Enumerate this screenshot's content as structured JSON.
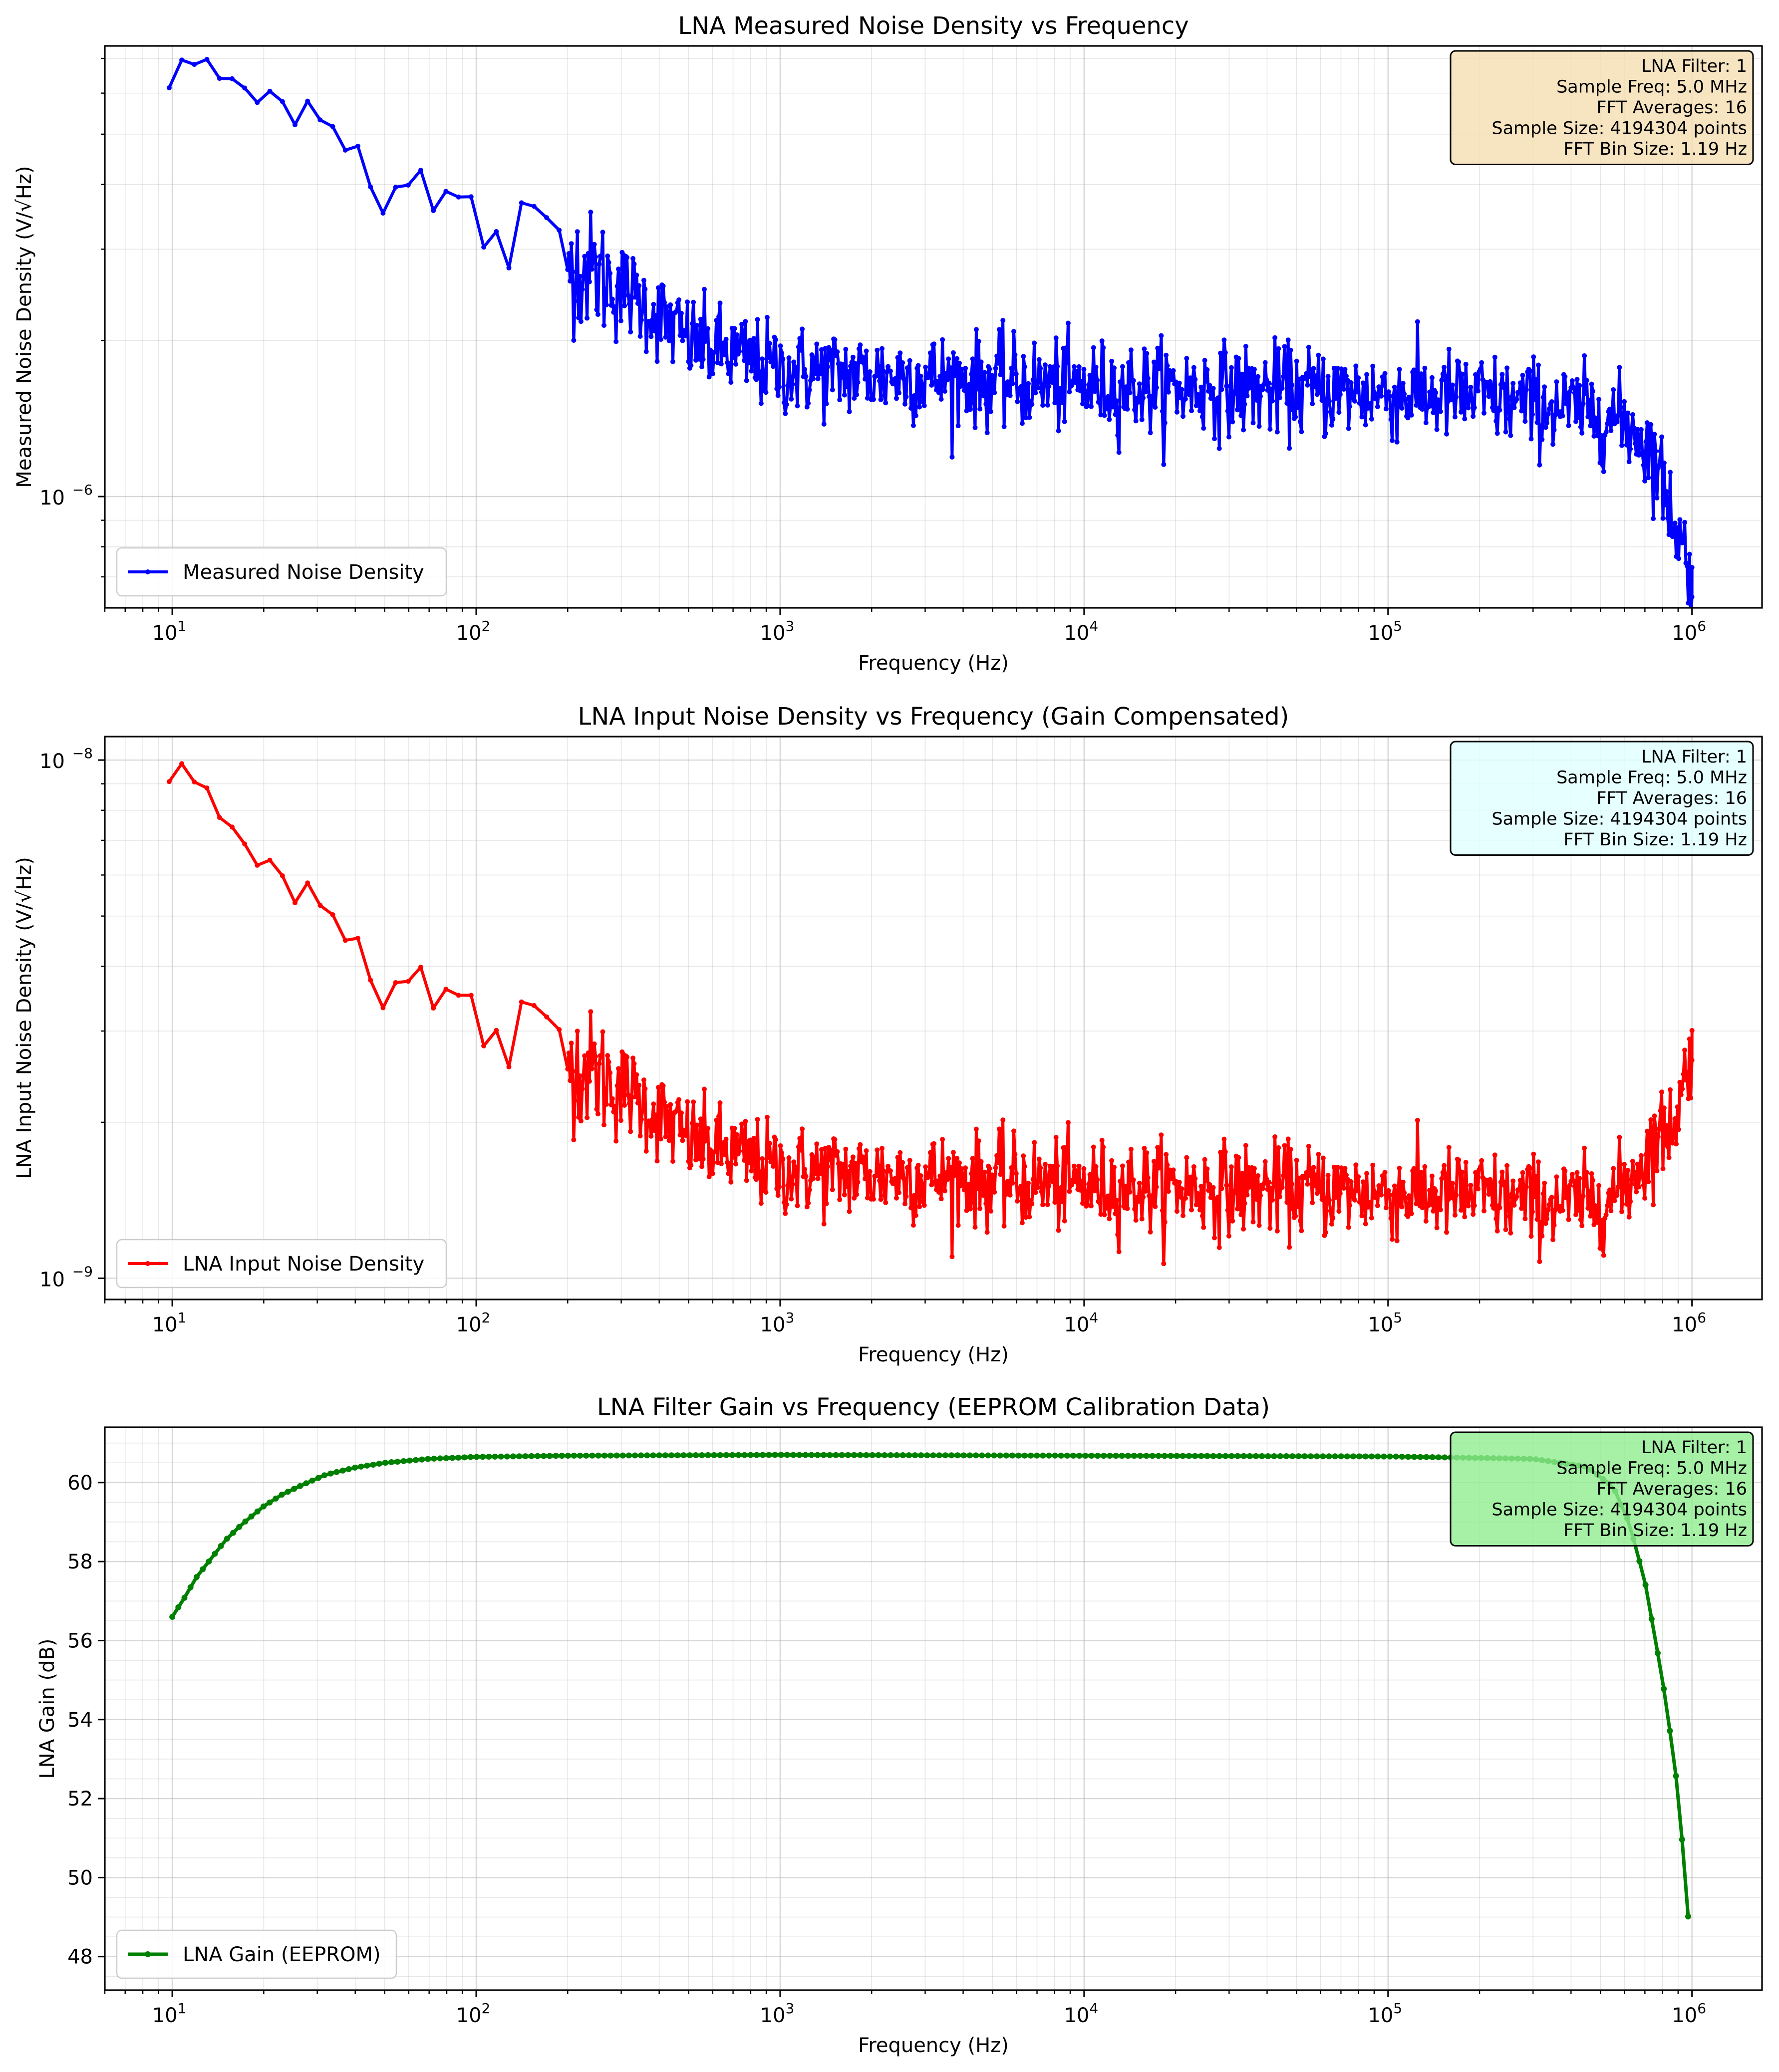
{
  "info_box": {
    "lines": [
      "LNA Filter: 1",
      "Sample Freq: 5.0 MHz",
      "FFT Averages: 16",
      "Sample Size: 4194304 points",
      "FFT Bin Size: 1.19 Hz"
    ]
  },
  "chart_data": [
    {
      "id": "measured",
      "type": "line",
      "title": "LNA Measured Noise Density vs Frequency",
      "xlabel": "Frequency (Hz)",
      "ylabel": "Measured Noise Density (V/√Hz)",
      "x_scale": "log",
      "y_scale": "log",
      "xlim": [
        6,
        1700000
      ],
      "ylim": [
        6.1e-07,
        7.4e-06
      ],
      "x_ticks": [
        {
          "v": 10,
          "base": "10",
          "exp": "1"
        },
        {
          "v": 100,
          "base": "10",
          "exp": "2"
        },
        {
          "v": 1000,
          "base": "10",
          "exp": "3"
        },
        {
          "v": 10000,
          "base": "10",
          "exp": "4"
        },
        {
          "v": 100000,
          "base": "10",
          "exp": "5"
        },
        {
          "v": 1000000,
          "base": "10",
          "exp": "6"
        }
      ],
      "y_ticks": [
        {
          "v": 1e-06,
          "base": "10",
          "exp": "−6"
        }
      ],
      "legend": "Measured Noise Density",
      "legend_position": "lower-left",
      "info_box_position": "upper-right",
      "color": "#0000ff",
      "box_color": "#f5deb3",
      "grid": true,
      "model": "measured",
      "series": [
        {
          "name": "Measured Noise Density",
          "anchors": [
            [
              9.8,
              6.2e-06
            ],
            [
              11,
              6.9e-06
            ],
            [
              12.5,
              6.9e-06
            ],
            [
              14,
              6.3e-06
            ],
            [
              16,
              6.5e-06
            ],
            [
              18,
              5.9e-06
            ],
            [
              20,
              5.6e-06
            ],
            [
              21,
              6e-06
            ],
            [
              25,
              5.5e-06
            ],
            [
              28,
              5.9e-06
            ],
            [
              33,
              5.2e-06
            ],
            [
              40,
              4.6e-06
            ],
            [
              50,
              4.2e-06
            ],
            [
              70,
              3.7e-06
            ],
            [
              100,
              3.35e-06
            ],
            [
              150,
              3.1e-06
            ],
            [
              200,
              2.85e-06
            ],
            [
              300,
              2.55e-06
            ],
            [
              500,
              2e-06
            ],
            [
              1000,
              1.75e-06
            ],
            [
              3000,
              1.7e-06
            ],
            [
              10000,
              1.63e-06
            ],
            [
              50000,
              1.6e-06
            ],
            [
              200000,
              1.55e-06
            ],
            [
              500000,
              1.45e-06
            ],
            [
              650000,
              1.35e-06
            ],
            [
              750000,
              1.2e-06
            ],
            [
              850000,
              9.5e-07
            ],
            [
              950000,
              7.8e-07
            ],
            [
              1000000,
              6.6e-07
            ]
          ]
        }
      ]
    },
    {
      "id": "input",
      "type": "line",
      "title": "LNA Input Noise Density vs Frequency (Gain Compensated)",
      "xlabel": "Frequency (Hz)",
      "ylabel": "LNA Input Noise Density (V/√Hz)",
      "x_scale": "log",
      "y_scale": "log",
      "xlim": [
        6,
        1700000
      ],
      "ylim": [
        9.1e-10,
        1.11e-08
      ],
      "x_ticks": [
        {
          "v": 10,
          "base": "10",
          "exp": "1"
        },
        {
          "v": 100,
          "base": "10",
          "exp": "2"
        },
        {
          "v": 1000,
          "base": "10",
          "exp": "3"
        },
        {
          "v": 10000,
          "base": "10",
          "exp": "4"
        },
        {
          "v": 100000,
          "base": "10",
          "exp": "5"
        },
        {
          "v": 1000000,
          "base": "10",
          "exp": "6"
        }
      ],
      "y_ticks": [
        {
          "v": 1e-09,
          "base": "10",
          "exp": "−9"
        },
        {
          "v": 1e-08,
          "base": "10",
          "exp": "−8"
        }
      ],
      "legend": "LNA Input Noise Density",
      "legend_position": "lower-left",
      "info_box_position": "upper-right",
      "color": "#ff0000",
      "box_color": "#e0ffff",
      "grid": true,
      "model": "input",
      "series": [
        {
          "name": "LNA Input Noise Density"
        }
      ]
    },
    {
      "id": "gain",
      "type": "line",
      "title": "LNA Filter Gain vs Frequency (EEPROM Calibration Data)",
      "xlabel": "Frequency (Hz)",
      "ylabel": "LNA Gain (dB)",
      "x_scale": "log",
      "y_scale": "linear",
      "xlim": [
        6,
        1700000
      ],
      "ylim": [
        47.15,
        61.4
      ],
      "x_ticks": [
        {
          "v": 10,
          "base": "10",
          "exp": "1"
        },
        {
          "v": 100,
          "base": "10",
          "exp": "2"
        },
        {
          "v": 1000,
          "base": "10",
          "exp": "3"
        },
        {
          "v": 10000,
          "base": "10",
          "exp": "4"
        },
        {
          "v": 100000,
          "base": "10",
          "exp": "5"
        },
        {
          "v": 1000000,
          "base": "10",
          "exp": "6"
        }
      ],
      "y_ticks": [
        {
          "v": 48,
          "label": "48"
        },
        {
          "v": 50,
          "label": "50"
        },
        {
          "v": 52,
          "label": "52"
        },
        {
          "v": 54,
          "label": "54"
        },
        {
          "v": 56,
          "label": "56"
        },
        {
          "v": 58,
          "label": "58"
        },
        {
          "v": 60,
          "label": "60"
        }
      ],
      "legend": "LNA Gain (EEPROM)",
      "legend_position": "lower-left",
      "info_box_position": "upper-right",
      "color": "#008000",
      "box_color": "#90ee90",
      "grid": true,
      "model": "gain",
      "series": [
        {
          "name": "LNA Gain (EEPROM)",
          "anchors": [
            [
              10,
              56.6
            ],
            [
              11,
              57.1
            ],
            [
              12,
              57.6
            ],
            [
              13.5,
              58.1
            ],
            [
              15,
              58.55
            ],
            [
              17,
              58.95
            ],
            [
              20,
              59.4
            ],
            [
              23,
              59.7
            ],
            [
              27,
              59.95
            ],
            [
              32,
              60.2
            ],
            [
              40,
              60.38
            ],
            [
              50,
              60.5
            ],
            [
              70,
              60.6
            ],
            [
              100,
              60.65
            ],
            [
              200,
              60.68
            ],
            [
              1000,
              60.7
            ],
            [
              10000,
              60.68
            ],
            [
              100000,
              60.66
            ],
            [
              300000,
              60.6
            ],
            [
              450000,
              60.4
            ],
            [
              550000,
              59.9
            ],
            [
              620000,
              59.0
            ],
            [
              700000,
              57.5
            ],
            [
              800000,
              55.0
            ],
            [
              880000,
              52.8
            ],
            [
              940000,
              50.5
            ],
            [
              1000000,
              47.7
            ]
          ]
        }
      ]
    }
  ]
}
